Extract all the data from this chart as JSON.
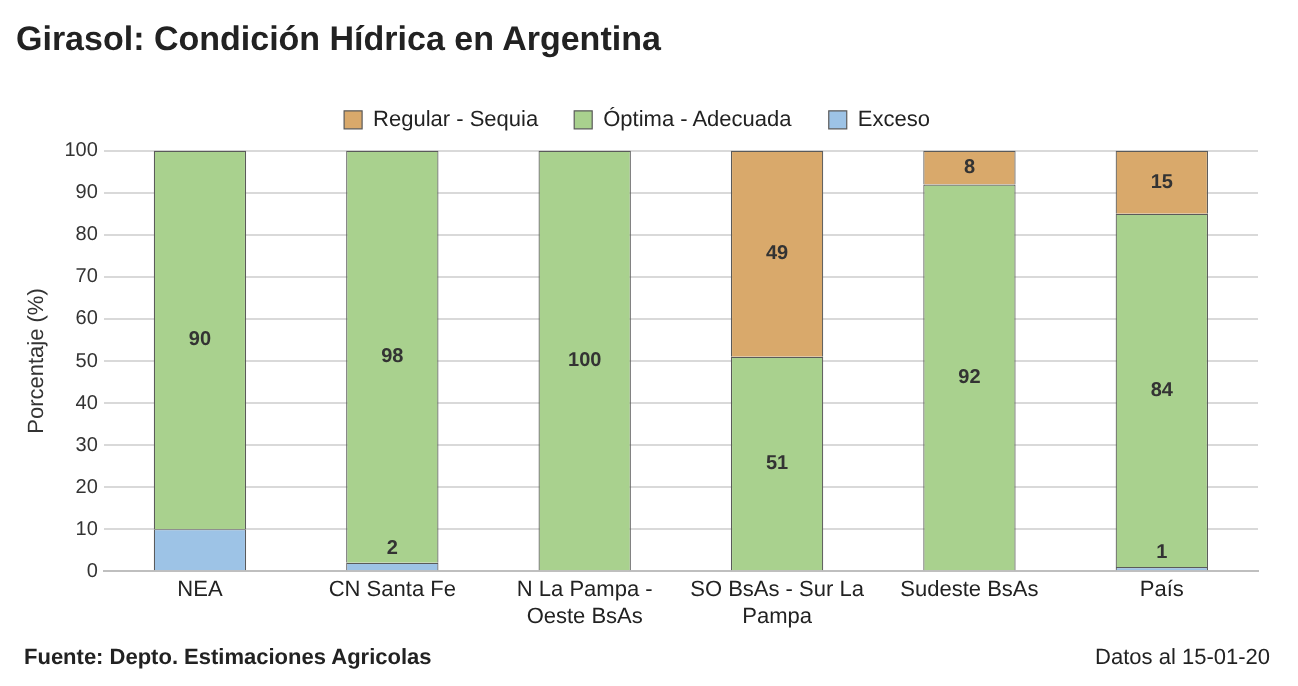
{
  "chart_data": {
    "type": "bar",
    "title": "Girasol: Condición Hídrica en Argentina",
    "ylabel": "Porcentaje (%)",
    "categories": [
      "NEA",
      "CN Santa Fe",
      "N La Pampa - Oeste BsAs",
      "SO BsAs - Sur La Pampa",
      "Sudeste BsAs",
      "País"
    ],
    "series": [
      {
        "name": "Exceso",
        "color": "#9dc3e6",
        "values": [
          10,
          2,
          0,
          0,
          0,
          1
        ],
        "value_labels": [
          null,
          "2",
          null,
          null,
          null,
          "1"
        ]
      },
      {
        "name": "Óptima - Adecuada",
        "color": "#a9d18e",
        "values": [
          90,
          98,
          100,
          51,
          92,
          84
        ],
        "value_labels": [
          "90",
          "98",
          "100",
          "51",
          "92",
          "84"
        ]
      },
      {
        "name": "Regular - Sequia",
        "color": "#d9a96b",
        "values": [
          0,
          0,
          0,
          49,
          8,
          15
        ],
        "value_labels": [
          null,
          null,
          null,
          "49",
          "8",
          "15"
        ]
      }
    ],
    "stacked": true,
    "ylim": [
      0,
      100
    ],
    "yticks": [
      0,
      10,
      20,
      30,
      40,
      50,
      60,
      70,
      80,
      90,
      100
    ],
    "grid": "y",
    "legend": "top",
    "annotations": [
      "Fuente: Depto. Estimaciones Agricolas",
      "Datos al 15-01-20"
    ]
  }
}
